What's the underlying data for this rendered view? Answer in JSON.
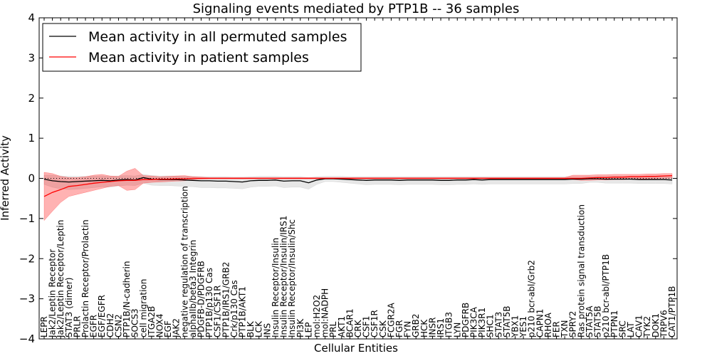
{
  "chart_data": {
    "type": "line",
    "title": "Signaling events mediated by PTP1B -- 36 samples",
    "xlabel": "Cellular Entities",
    "ylabel": "Inferred Activity",
    "ylim": [
      -4,
      4
    ],
    "yticks": [
      "−4",
      "−3",
      "−2",
      "−1",
      "0",
      "1",
      "2",
      "3",
      "4"
    ],
    "ytick_values": [
      -4,
      -3,
      -2,
      -1,
      0,
      1,
      2,
      3,
      4
    ],
    "legend": {
      "placement": "top-left",
      "entries": [
        {
          "label": "Mean activity in all permuted samples",
          "color": "#000000"
        },
        {
          "label": "Mean activity in patient samples",
          "color": "#ff0000"
        }
      ]
    },
    "categories": [
      "LEPR",
      "Jak2/Leptin Receptor",
      "Jak2/Leptin Receptor/Leptin",
      "STAT3 (dimer)",
      "PRLR",
      "Prolactin Receptor/Prolactin",
      "EGFR",
      "EGF/EGFR",
      "CDH2",
      "CSN2",
      "PTP1B/N-cadherin",
      "SOCS3",
      "cell migration",
      "ITGA2B",
      "NOX4",
      "EGF",
      "JAK2",
      "negative regulation of transcription",
      "alphaIIb/beta3 Integrin",
      "PDGFB-D/PDGFRB",
      "PTP1B/p130 Cas",
      "CSF1/CSF1R",
      "PTP1B/IRS1/GRB2",
      "Crk/p130 Cas",
      "PTP1B/AKT1",
      "BLK",
      "LCK",
      "INS",
      "Insulin Receptor/Insulin",
      "Insulin Receptor/Insulin/IRS1",
      "Insulin Receptor/Insulin/Shc",
      "PI3K",
      "LEP",
      "mol:H2O2",
      "mol:NADPH",
      "PRL",
      "AKT1",
      "BCAR1",
      "CRK",
      "CSF1",
      "CSF1R",
      "CSK",
      "FCGR2A",
      "FGR",
      "FYN",
      "GRB2",
      "HCK",
      "INSR",
      "IRS1",
      "ITGB3",
      "LYN",
      "PDGFRB",
      "PIK3CA",
      "PIK3R1",
      "SHC1",
      "STAT3",
      "STAT5B",
      "YBX1",
      "YES1",
      "p210 bcr-abl/Grb2",
      "CAPN1",
      "RHOA",
      "FER",
      "TXN",
      "SPRY2",
      "Ras protein signal transduction",
      "STAT5A",
      "STAT5B",
      "p210 bcr-abl/PTP1B",
      "PTPN1",
      "SRC",
      "LAT",
      "CAV1",
      "TYK2",
      "DOK1",
      "TRPV6",
      "CAT1/PTP1B"
    ],
    "series": [
      {
        "name": "Mean activity in all permuted samples",
        "color": "#000000",
        "values": [
          -0.02,
          -0.06,
          -0.08,
          -0.09,
          -0.08,
          -0.07,
          -0.06,
          -0.05,
          -0.06,
          -0.04,
          -0.03,
          -0.04,
          0.02,
          -0.02,
          -0.03,
          -0.03,
          -0.03,
          -0.04,
          -0.05,
          -0.06,
          -0.06,
          -0.07,
          -0.07,
          -0.08,
          -0.09,
          -0.06,
          -0.05,
          -0.05,
          -0.04,
          -0.07,
          -0.06,
          -0.06,
          -0.11,
          -0.04,
          -0.01,
          -0.01,
          -0.02,
          -0.03,
          -0.04,
          -0.05,
          -0.04,
          -0.04,
          -0.04,
          -0.05,
          -0.04,
          -0.04,
          -0.04,
          -0.04,
          -0.05,
          -0.05,
          -0.04,
          -0.04,
          -0.03,
          -0.04,
          -0.03,
          -0.03,
          -0.03,
          -0.03,
          -0.03,
          -0.03,
          -0.03,
          -0.03,
          -0.03,
          -0.03,
          -0.02,
          -0.02,
          -0.01,
          -0.01,
          -0.02,
          -0.02,
          -0.02,
          -0.02,
          -0.03,
          -0.03,
          -0.03,
          -0.03,
          -0.04
        ],
        "band_low": [
          -0.15,
          -0.22,
          -0.26,
          -0.28,
          -0.27,
          -0.25,
          -0.23,
          -0.21,
          -0.22,
          -0.19,
          -0.17,
          -0.18,
          -0.12,
          -0.17,
          -0.18,
          -0.18,
          -0.19,
          -0.2,
          -0.21,
          -0.23,
          -0.23,
          -0.24,
          -0.24,
          -0.25,
          -0.26,
          -0.22,
          -0.2,
          -0.2,
          -0.19,
          -0.23,
          -0.22,
          -0.22,
          -0.27,
          -0.15,
          -0.08,
          -0.08,
          -0.1,
          -0.12,
          -0.14,
          -0.16,
          -0.15,
          -0.15,
          -0.15,
          -0.16,
          -0.15,
          -0.15,
          -0.15,
          -0.15,
          -0.16,
          -0.16,
          -0.15,
          -0.15,
          -0.14,
          -0.15,
          -0.14,
          -0.14,
          -0.14,
          -0.14,
          -0.14,
          -0.14,
          -0.14,
          -0.14,
          -0.14,
          -0.14,
          -0.13,
          -0.13,
          -0.1,
          -0.1,
          -0.12,
          -0.12,
          -0.12,
          -0.12,
          -0.13,
          -0.13,
          -0.13,
          -0.13,
          -0.14
        ],
        "band_high": [
          0.08,
          0.08,
          0.06,
          0.05,
          0.05,
          0.05,
          0.06,
          0.06,
          0.05,
          0.06,
          0.07,
          0.06,
          0.1,
          0.07,
          0.06,
          0.06,
          0.06,
          0.05,
          0.05,
          0.04,
          0.04,
          0.04,
          0.04,
          0.03,
          0.03,
          0.04,
          0.05,
          0.05,
          0.05,
          0.04,
          0.04,
          0.04,
          0.02,
          0.04,
          0.05,
          0.05,
          0.05,
          0.04,
          0.04,
          0.04,
          0.04,
          0.04,
          0.04,
          0.04,
          0.04,
          0.04,
          0.04,
          0.04,
          0.04,
          0.04,
          0.04,
          0.04,
          0.04,
          0.04,
          0.04,
          0.04,
          0.04,
          0.04,
          0.04,
          0.04,
          0.04,
          0.04,
          0.04,
          0.04,
          0.04,
          0.04,
          0.05,
          0.05,
          0.05,
          0.05,
          0.05,
          0.05,
          0.05,
          0.05,
          0.05,
          0.05,
          0.05
        ]
      },
      {
        "name": "Mean activity in patient samples",
        "color": "#ff0000",
        "values": [
          -0.45,
          -0.35,
          -0.28,
          -0.2,
          -0.18,
          -0.15,
          -0.12,
          -0.1,
          -0.08,
          -0.06,
          -0.05,
          -0.05,
          -0.03,
          -0.03,
          -0.02,
          -0.02,
          -0.01,
          -0.01,
          0,
          0,
          0,
          0,
          0,
          0,
          0,
          0,
          0,
          0,
          0,
          0,
          0,
          0,
          0,
          0,
          0,
          0,
          0,
          0,
          0,
          0,
          0,
          0,
          0,
          0,
          0,
          0,
          0,
          0,
          0,
          0,
          0,
          0,
          0,
          0,
          0,
          0,
          0,
          0,
          0,
          0,
          0,
          0,
          0,
          0,
          0,
          0,
          0.01,
          0.02,
          0.02,
          0.03,
          0.03,
          0.04,
          0.04,
          0.05,
          0.05,
          0.06,
          0.07
        ],
        "band_low": [
          -1.05,
          -0.82,
          -0.6,
          -0.45,
          -0.4,
          -0.35,
          -0.3,
          -0.25,
          -0.2,
          -0.18,
          -0.3,
          -0.28,
          -0.12,
          -0.1,
          -0.09,
          -0.08,
          -0.07,
          -0.06,
          -0.03,
          -0.02,
          -0.01,
          -0.01,
          -0.01,
          -0.01,
          -0.01,
          -0.01,
          -0.01,
          -0.01,
          -0.01,
          -0.01,
          -0.01,
          -0.01,
          -0.01,
          -0.01,
          -0.01,
          -0.01,
          -0.01,
          -0.01,
          -0.01,
          -0.01,
          -0.01,
          -0.01,
          -0.01,
          -0.01,
          -0.01,
          -0.01,
          -0.01,
          -0.01,
          -0.01,
          -0.01,
          -0.01,
          -0.01,
          -0.01,
          -0.01,
          -0.01,
          -0.01,
          -0.01,
          -0.01,
          -0.01,
          -0.01,
          -0.01,
          -0.01,
          -0.01,
          -0.01,
          -0.03,
          -0.05,
          -0.05,
          -0.04,
          -0.04,
          -0.03,
          -0.03,
          -0.02,
          -0.02,
          -0.01,
          -0.01,
          0,
          0
        ],
        "band_high": [
          0.15,
          0.12,
          0.05,
          0.02,
          0.02,
          0.04,
          0.08,
          0.1,
          0.06,
          0.05,
          0.18,
          0.25,
          0.07,
          0.06,
          0.04,
          0.05,
          0.06,
          0.07,
          0.04,
          0.03,
          0.02,
          0.02,
          0.02,
          0.02,
          0.02,
          0.02,
          0.02,
          0.02,
          0.02,
          0.02,
          0.02,
          0.02,
          0.02,
          0.02,
          0.02,
          0.02,
          0.02,
          0.02,
          0.02,
          0.02,
          0.02,
          0.02,
          0.02,
          0.02,
          0.02,
          0.02,
          0.02,
          0.02,
          0.02,
          0.02,
          0.02,
          0.02,
          0.02,
          0.02,
          0.02,
          0.02,
          0.02,
          0.02,
          0.02,
          0.02,
          0.02,
          0.02,
          0.02,
          0.02,
          0.08,
          0.08,
          0.08,
          0.09,
          0.09,
          0.1,
          0.1,
          0.1,
          0.1,
          0.11,
          0.11,
          0.12,
          0.12
        ]
      }
    ]
  }
}
